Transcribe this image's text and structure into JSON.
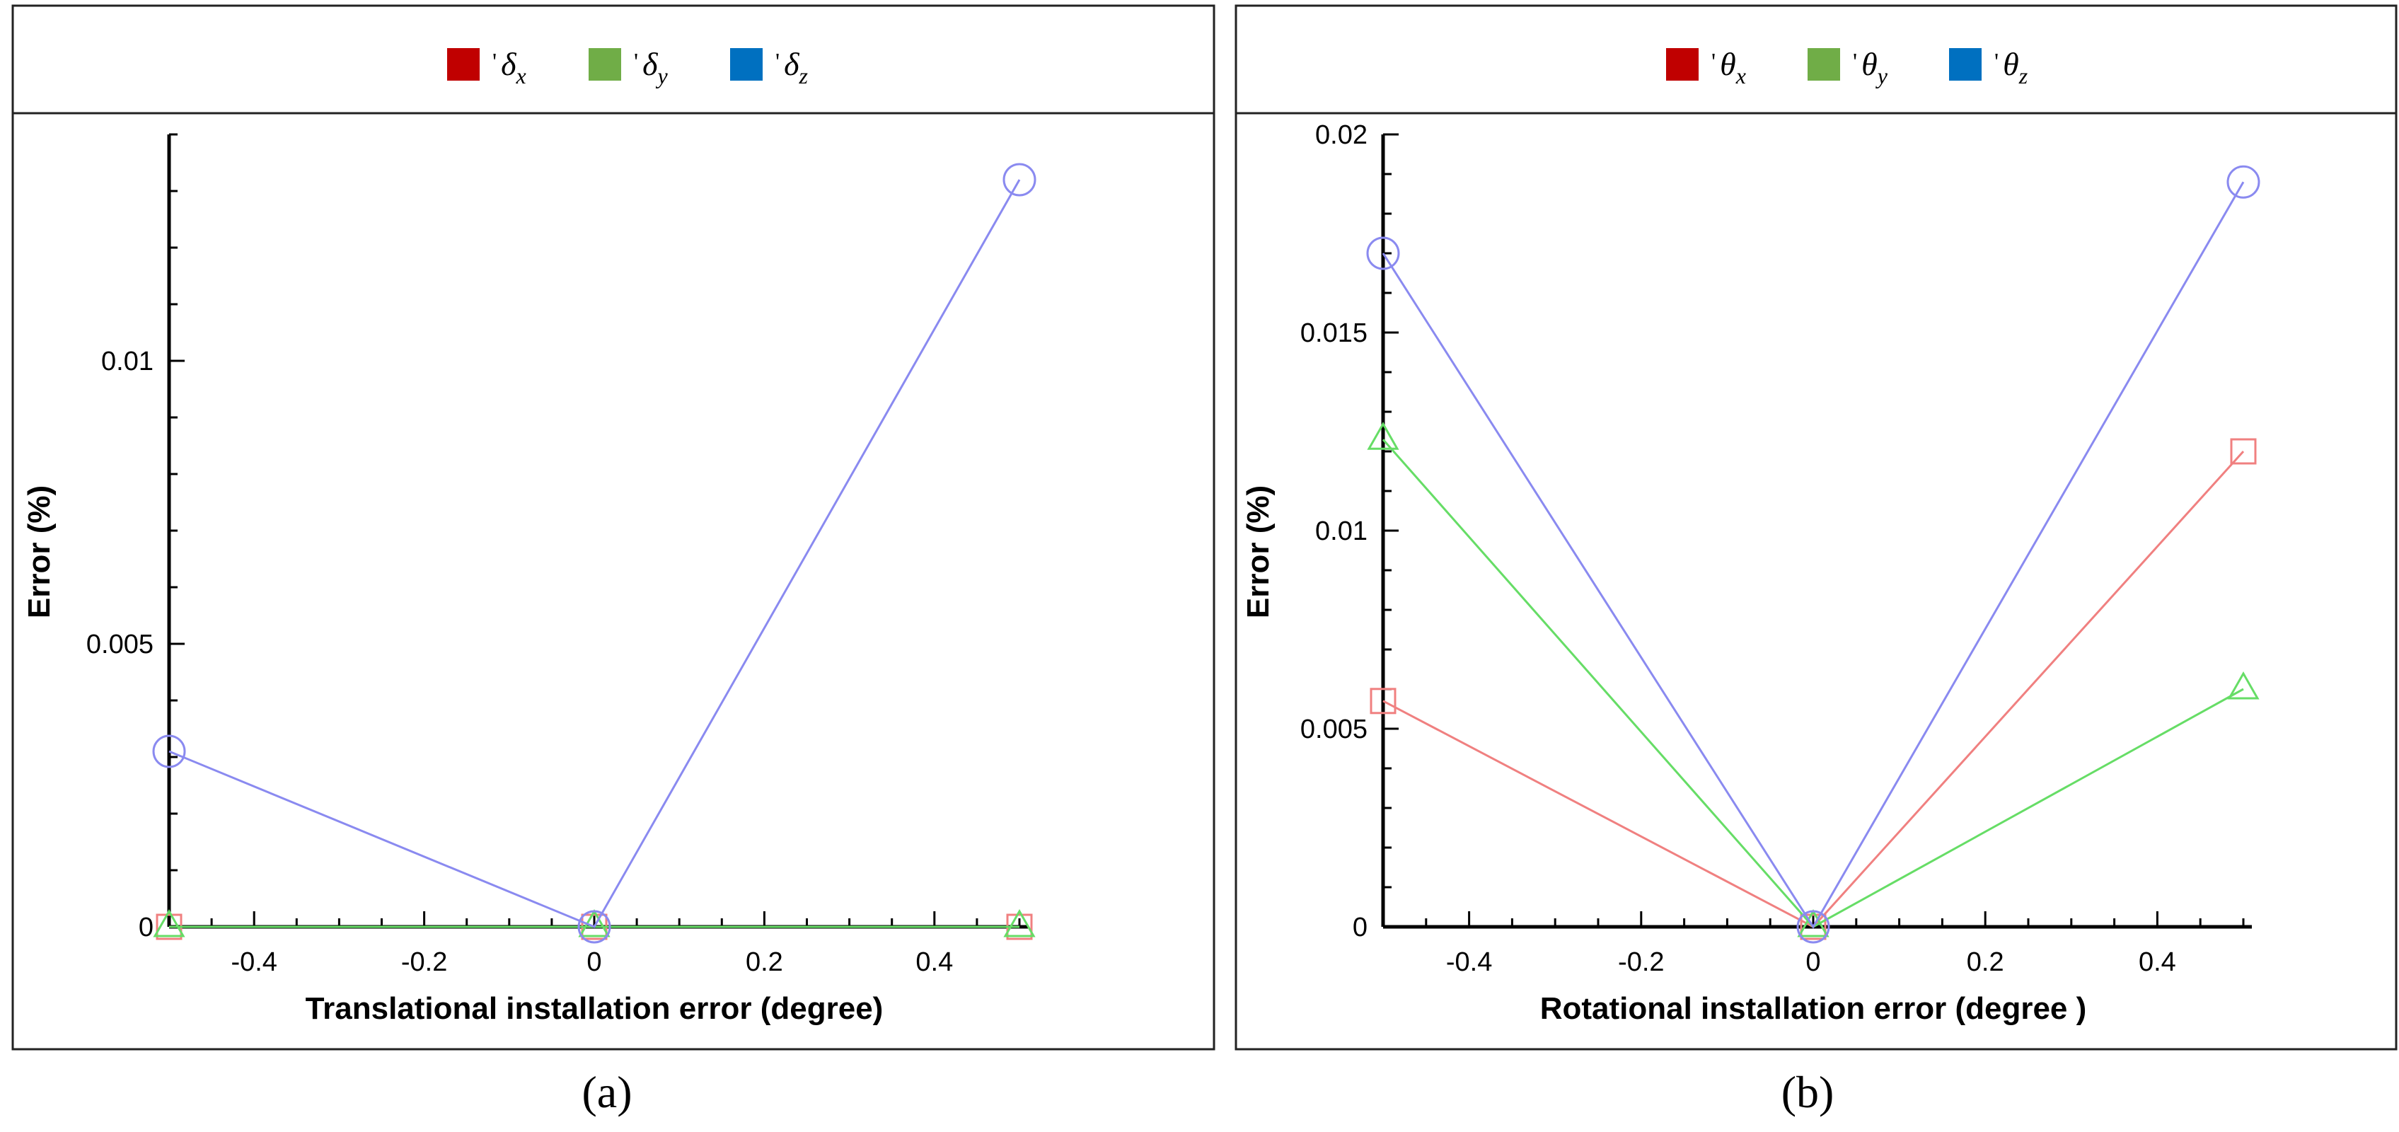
{
  "colors": {
    "legend_red": "#c00000",
    "legend_green": "#70ad47",
    "legend_blue": "#0070c0",
    "line_red": "#f08080",
    "line_green": "#66dd66",
    "line_blue": "#8a8af0",
    "axis": "#000000"
  },
  "chart_data": [
    {
      "type": "line",
      "caption": "(a)",
      "xlabel": "Translational installation error (degree)",
      "ylabel": "Error (%)",
      "xlim": [
        -0.5,
        0.5
      ],
      "ylim": [
        0,
        0.014
      ],
      "x_ticks": [
        -0.4,
        -0.2,
        0,
        0.2,
        0.4
      ],
      "x_tick_labels": [
        "-0.4",
        "-0.2",
        "0",
        "0.2",
        "0.4"
      ],
      "y_ticks": [
        0,
        0.005,
        0.01
      ],
      "y_tick_labels": [
        "0",
        "0.005",
        "0.01"
      ],
      "grid": false,
      "legend_position": "top",
      "legend": [
        {
          "prefix": "'",
          "symbol": "δ",
          "sub": "x",
          "color_key": "legend_red"
        },
        {
          "prefix": "'",
          "symbol": "δ",
          "sub": "y",
          "color_key": "legend_green"
        },
        {
          "prefix": "'",
          "symbol": "δ",
          "sub": "z",
          "color_key": "legend_blue"
        }
      ],
      "series": [
        {
          "x": [
            -0.5,
            0,
            0.5
          ],
          "y": [
            0,
            0,
            0
          ],
          "marker": "square",
          "color_key": "line_red"
        },
        {
          "x": [
            -0.5,
            0,
            0.5
          ],
          "y": [
            0,
            0,
            0
          ],
          "marker": "triangle",
          "color_key": "line_green"
        },
        {
          "x": [
            -0.5,
            0,
            0.5
          ],
          "y": [
            0.0031,
            0,
            0.0132
          ],
          "marker": "circle",
          "color_key": "line_blue"
        }
      ]
    },
    {
      "type": "line",
      "caption": "(b)",
      "xlabel": "Rotational installation error (degree )",
      "ylabel": "Error (%)",
      "xlim": [
        -0.5,
        0.5
      ],
      "ylim": [
        0,
        0.02
      ],
      "x_ticks": [
        -0.4,
        -0.2,
        0,
        0.2,
        0.4
      ],
      "x_tick_labels": [
        "-0.4",
        "-0.2",
        "0",
        "0.2",
        "0.4"
      ],
      "y_ticks": [
        0,
        0.005,
        0.01,
        0.015,
        0.02
      ],
      "y_tick_labels": [
        "0",
        "0.005",
        "0.01",
        "0.015",
        "0.02"
      ],
      "grid": false,
      "legend_position": "top",
      "legend": [
        {
          "prefix": "'",
          "symbol": "θ",
          "sub": "x",
          "color_key": "legend_red"
        },
        {
          "prefix": "'",
          "symbol": "θ",
          "sub": "y",
          "color_key": "legend_green"
        },
        {
          "prefix": "'",
          "symbol": "θ",
          "sub": "z",
          "color_key": "legend_blue"
        }
      ],
      "series": [
        {
          "x": [
            -0.5,
            0,
            0.5
          ],
          "y": [
            0.0057,
            0,
            0.012
          ],
          "marker": "square",
          "color_key": "line_red"
        },
        {
          "x": [
            -0.5,
            0,
            0.5
          ],
          "y": [
            0.0123,
            0,
            0.006
          ],
          "marker": "triangle",
          "color_key": "line_green"
        },
        {
          "x": [
            -0.5,
            0,
            0.5
          ],
          "y": [
            0.017,
            0,
            0.0188
          ],
          "marker": "circle",
          "color_key": "line_blue"
        }
      ]
    }
  ]
}
